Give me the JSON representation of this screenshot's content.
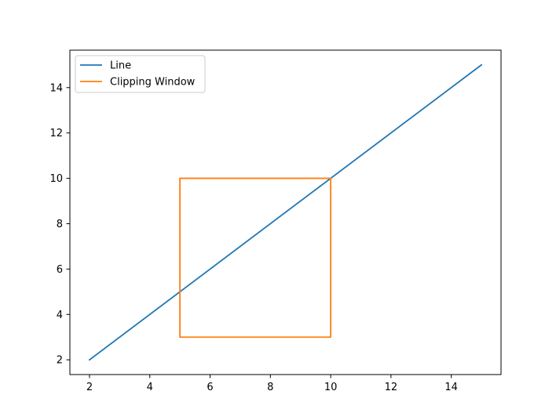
{
  "chart_data": {
    "type": "line",
    "title": "",
    "xlabel": "",
    "ylabel": "",
    "xlim": [
      1.35,
      15.65
    ],
    "ylim": [
      1.35,
      15.65
    ],
    "xticks": [
      2,
      4,
      6,
      8,
      10,
      12,
      14
    ],
    "yticks": [
      2,
      4,
      6,
      8,
      10,
      12,
      14
    ],
    "grid": false,
    "legend_position": "upper-left",
    "series": [
      {
        "name": "Line",
        "color": "#1f77b4",
        "x": [
          2,
          15
        ],
        "y": [
          2,
          15
        ]
      },
      {
        "name": "Clipping Window",
        "color": "#ff7f0e",
        "x": [
          5,
          10,
          10,
          5,
          5
        ],
        "y": [
          3,
          3,
          10,
          10,
          3
        ]
      }
    ]
  }
}
